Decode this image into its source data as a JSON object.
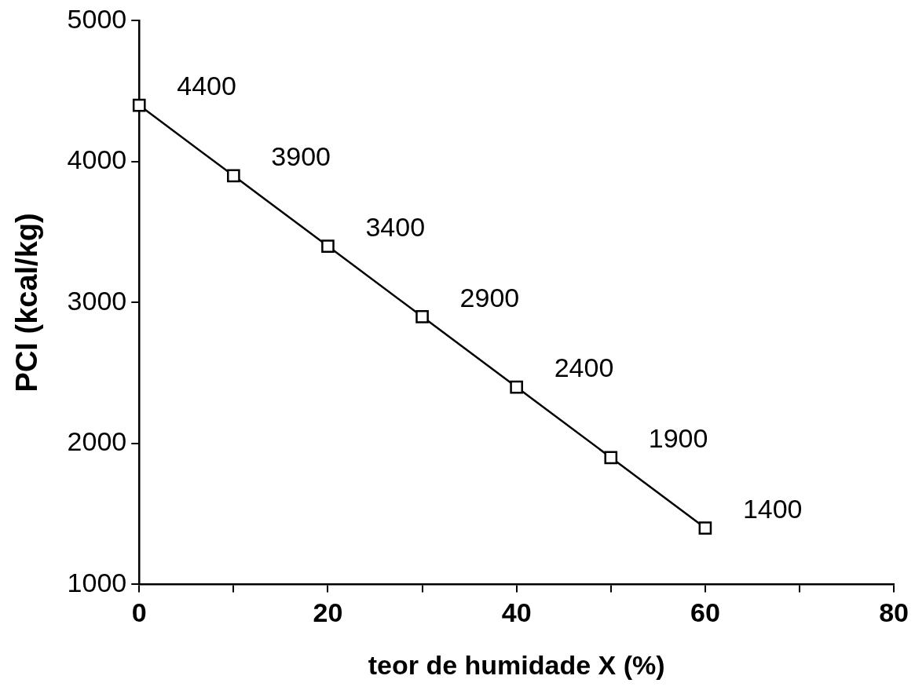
{
  "chart_data": {
    "type": "line",
    "xlabel": "teor de humidade X (%)",
    "ylabel": "PCI (kcal/kg)",
    "x": [
      0,
      10,
      20,
      30,
      40,
      50,
      60
    ],
    "series": [
      {
        "color": "#000000",
        "values": [
          4400,
          3900,
          3400,
          2900,
          2400,
          1900,
          1400
        ]
      }
    ],
    "xlim": [
      0,
      80
    ],
    "xticks": [
      0,
      {
        "value": 10,
        "label": null
      },
      20,
      {
        "value": 30,
        "label": null
      },
      40,
      {
        "value": 50,
        "label": null
      },
      60,
      {
        "value": 70,
        "label": null
      },
      80
    ],
    "ylim": [
      1000,
      5000
    ],
    "yticks": [
      1000,
      2000,
      3000,
      4000,
      5000
    ],
    "marker": "square",
    "line_style": "solid",
    "grid": false,
    "legend": false,
    "data_labels": true
  }
}
